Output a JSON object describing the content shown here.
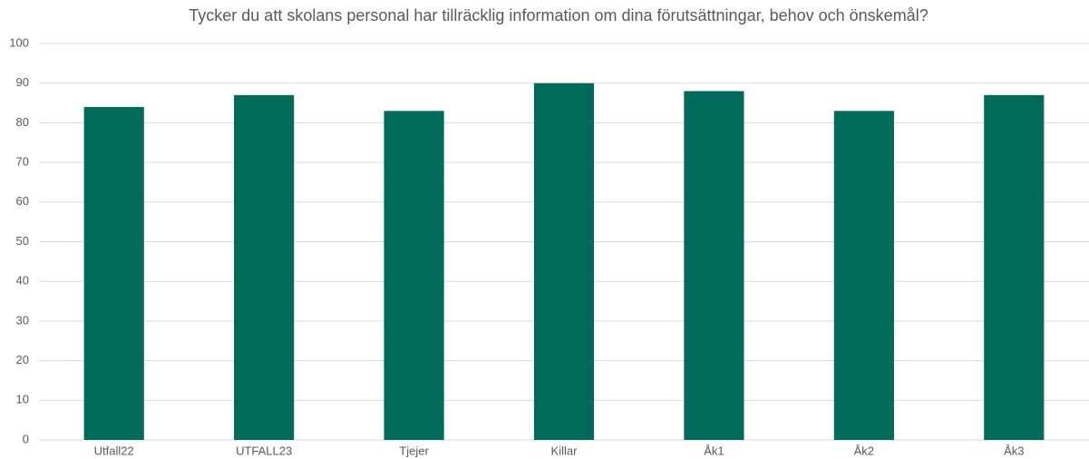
{
  "chart_data": {
    "type": "bar",
    "title": "Tycker du att skolans personal har tillräcklig information om dina förutsättningar, behov och önskemål?",
    "categories": [
      "Utfall22",
      "UTFALL23",
      "Tjejer",
      "Killar",
      "Åk1",
      "Åk2",
      "Åk3"
    ],
    "values": [
      84,
      87,
      83,
      90,
      88,
      83,
      87
    ],
    "color": "#006b5a",
    "ylim": [
      0,
      100
    ],
    "yticks": [
      0,
      10,
      20,
      30,
      40,
      50,
      60,
      70,
      80,
      90,
      100
    ],
    "grid": true
  }
}
